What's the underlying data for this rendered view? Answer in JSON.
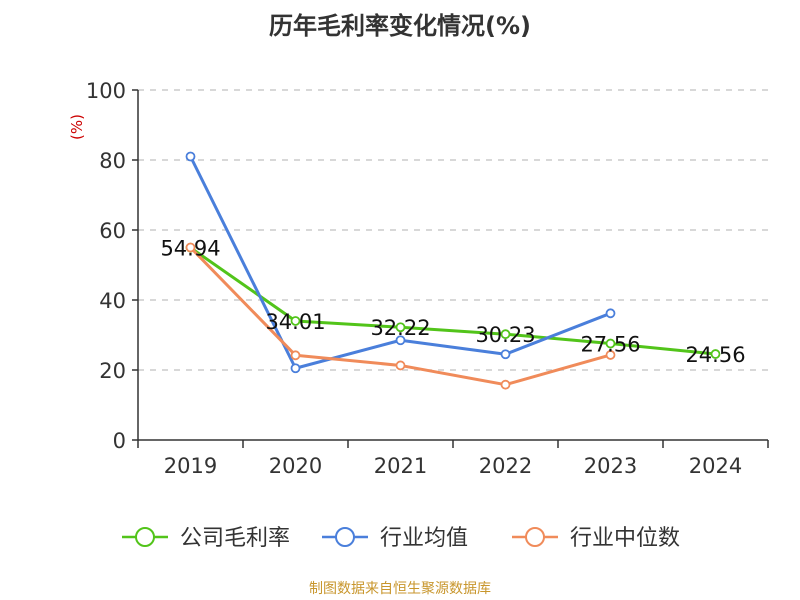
{
  "colors": {
    "company": "#52c41a",
    "industry_avg": "#4a7fdb",
    "industry_median": "#f08b5a",
    "axis": "#333333",
    "grid": "#cccccc",
    "ylabel": "#cc0000",
    "credit": "#c8962c"
  },
  "source_credit": "制图数据来自恒生聚源数据库",
  "chart_data": {
    "type": "line",
    "title": "历年毛利率变化情况(%)",
    "ylabel": "(%)",
    "xlabel": "",
    "categories": [
      "2019",
      "2020",
      "2021",
      "2022",
      "2023",
      "2024"
    ],
    "ylim": [
      0,
      100
    ],
    "yticks": [
      "0",
      "20",
      "40",
      "60",
      "80",
      "100"
    ],
    "grid": "horizontal dashed",
    "legend_position": "bottom",
    "series": [
      {
        "name": "公司毛利率",
        "values": [
          54.94,
          34.01,
          32.22,
          30.23,
          27.56,
          24.56
        ],
        "labels": [
          "54.94",
          "34.01",
          "32.22",
          "30.23",
          "27.56",
          "24.56"
        ]
      },
      {
        "name": "行业均值",
        "values": [
          81,
          20.5,
          28.5,
          24.5,
          36.2,
          null
        ]
      },
      {
        "name": "行业中位数",
        "values": [
          55,
          24.2,
          21.3,
          15.8,
          24.3,
          null
        ]
      }
    ]
  }
}
